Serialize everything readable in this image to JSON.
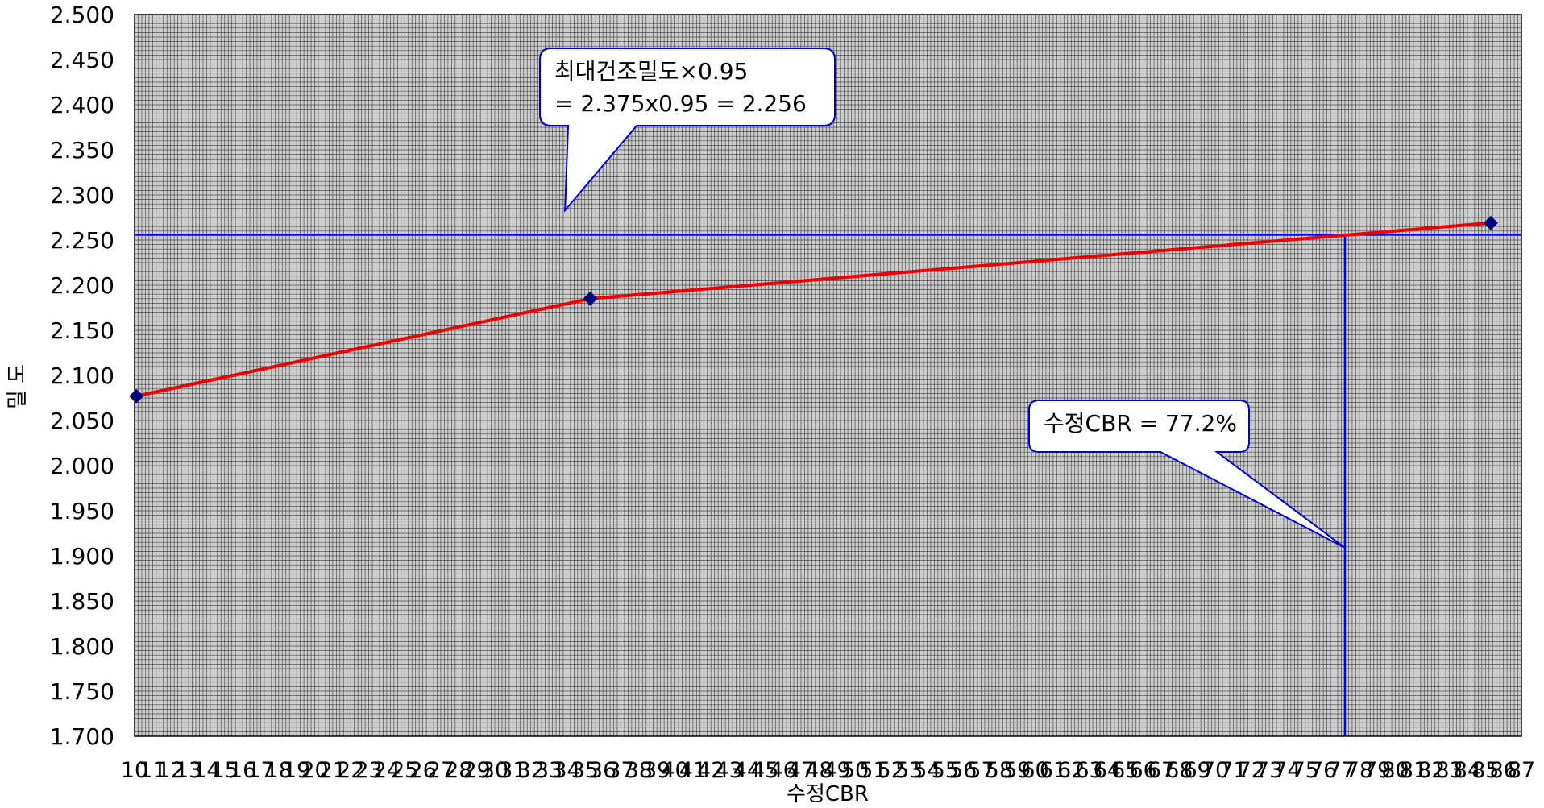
{
  "chart_data": {
    "type": "line",
    "xlabel": "수정CBR",
    "ylabel": "밀 도",
    "xlim": [
      10,
      87
    ],
    "ylim": [
      1.7,
      2.5
    ],
    "y_ticks": [
      "1.700",
      "1.750",
      "1.800",
      "1.850",
      "1.900",
      "1.950",
      "2.000",
      "2.050",
      "2.100",
      "2.150",
      "2.200",
      "2.250",
      "2.300",
      "2.350",
      "2.400",
      "2.450",
      "2.500"
    ],
    "x_ticks": [
      "10",
      "11",
      "12",
      "13",
      "14",
      "15",
      "16",
      "17",
      "18",
      "19",
      "20",
      "21",
      "22",
      "23",
      "24",
      "25",
      "26",
      "27",
      "28",
      "29",
      "30",
      "31",
      "32",
      "33",
      "34",
      "35",
      "36",
      "37",
      "38",
      "39",
      "40",
      "41",
      "42",
      "43",
      "44",
      "45",
      "46",
      "47",
      "48",
      "49",
      "50",
      "51",
      "52",
      "53",
      "54",
      "55",
      "56",
      "57",
      "58",
      "59",
      "60",
      "61",
      "62",
      "63",
      "64",
      "65",
      "66",
      "67",
      "68",
      "69",
      "70",
      "71",
      "72",
      "73",
      "74",
      "75",
      "76",
      "77",
      "78",
      "79",
      "80",
      "81",
      "82",
      "83",
      "84",
      "85",
      "86",
      "87"
    ],
    "grid": true,
    "plot_background": "#cfcfcf",
    "grid_color": "#4a4a4a",
    "series": [
      {
        "x": [
          10.1,
          35.3,
          85.3
        ],
        "y": [
          2.077,
          2.185,
          2.269
        ],
        "line_color": "#ee0000",
        "marker_color": "#00007a",
        "marker": "diamond"
      }
    ],
    "reference_lines": [
      {
        "orientation": "horizontal",
        "value": 2.256,
        "color": "#0000ee"
      },
      {
        "orientation": "vertical",
        "value": 77.2,
        "color": "#0000ee"
      }
    ],
    "annotations": [
      {
        "lines": [
          "최대건조밀도×0.95",
          "=  2.375x0.95 = 2.256"
        ],
        "pointer": [
          33.9,
          2.283
        ]
      },
      {
        "lines": [
          "수정CBR = 77.2%"
        ],
        "pointer": [
          77.2,
          1.909
        ]
      }
    ]
  }
}
